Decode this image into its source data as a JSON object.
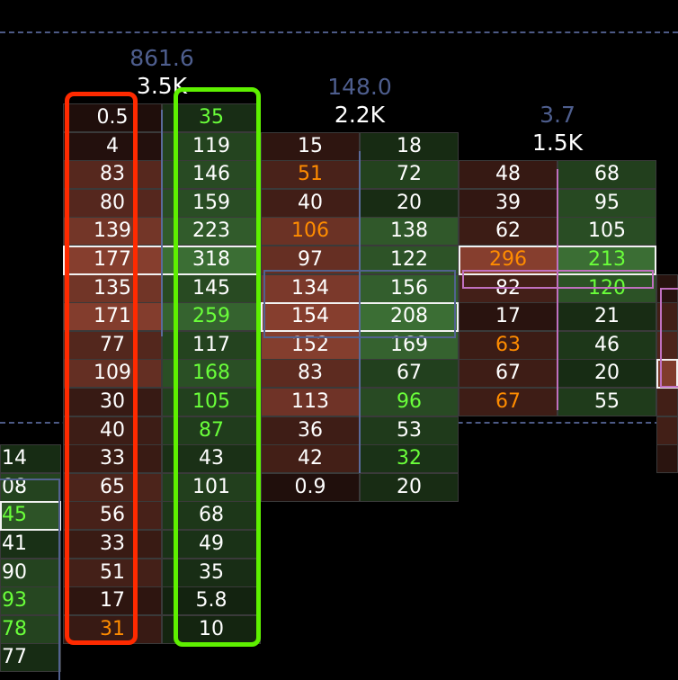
{
  "chart_data": {
    "type": "table",
    "title": "",
    "colors": {
      "bid_cell": "#7d3a2b",
      "ask_cell": "#3f7a38",
      "orange_text": "#ff8c00",
      "green_text": "#6aff3a",
      "delta_label": "#4e5e8e",
      "dashed_line": "#4d5a86",
      "red_annotation": "#ff2a00",
      "green_annotation": "#5ef000"
    },
    "columns": [
      {
        "delta": "",
        "volume": "",
        "bid": [],
        "ask": [
          null,
          null,
          null,
          null,
          null,
          null,
          null,
          null,
          null,
          null,
          null,
          null,
          "14",
          "08",
          "45",
          "41",
          "90",
          "93",
          "78",
          "77"
        ],
        "ask_green": [
          14,
          17,
          18
        ],
        "bid_orange": [],
        "poc_row": 14,
        "ask_shade": [
          0,
          0,
          0,
          0,
          0,
          0,
          0,
          0,
          0,
          0,
          0,
          0,
          0.15,
          0.45,
          0.65,
          0.2,
          0.45,
          0.5,
          0.45,
          0.15
        ]
      },
      {
        "delta": "861.6",
        "volume": "3.5K",
        "bid": [
          "0.5",
          "4",
          "83",
          "80",
          "139",
          "177",
          "135",
          "171",
          "77",
          "109",
          "30",
          "40",
          "33",
          "65",
          "56",
          "33",
          "51",
          "17",
          "31"
        ],
        "ask": [
          "35",
          "119",
          "146",
          "159",
          "223",
          "318",
          "145",
          "259",
          "117",
          "168",
          "105",
          "87",
          "43",
          "101",
          "68",
          "49",
          "35",
          "5.8",
          "10"
        ],
        "bid_orange": [
          18
        ],
        "ask_green": [
          0,
          7,
          9,
          10,
          11
        ],
        "poc_row": 5
      },
      {
        "delta": "148.0",
        "volume": "2.2K",
        "bid": [
          null,
          "15",
          "51",
          "40",
          "106",
          "97",
          "134",
          "154",
          "152",
          "83",
          "113",
          "36",
          "42",
          "0.9"
        ],
        "ask": [
          null,
          "18",
          "72",
          "20",
          "138",
          "122",
          "156",
          "208",
          "169",
          "67",
          "96",
          "53",
          "32",
          "20"
        ],
        "bid_orange": [
          2,
          4
        ],
        "ask_green": [
          10,
          12
        ],
        "poc_row": 7
      },
      {
        "delta": "3.7",
        "volume": "1.5K",
        "bid": [
          null,
          null,
          "48",
          "39",
          "62",
          "296",
          "82",
          "17",
          "63",
          "67",
          "67"
        ],
        "ask": [
          null,
          null,
          "68",
          "95",
          "105",
          "213",
          "120",
          "21",
          "46",
          "20",
          "55"
        ],
        "bid_orange": [
          5,
          8,
          10
        ],
        "ask_green": [
          5,
          6
        ],
        "poc_row": 5
      },
      {
        "delta": "",
        "volume": "",
        "bid": [],
        "bid_shade": [
          0,
          0,
          0,
          0,
          0,
          0,
          0.1,
          0.35,
          0.45,
          0.95,
          0.35,
          0.35,
          0.12
        ],
        "ask": [],
        "bid_orange": [],
        "ask_green": [],
        "poc_row": 9
      }
    ]
  }
}
